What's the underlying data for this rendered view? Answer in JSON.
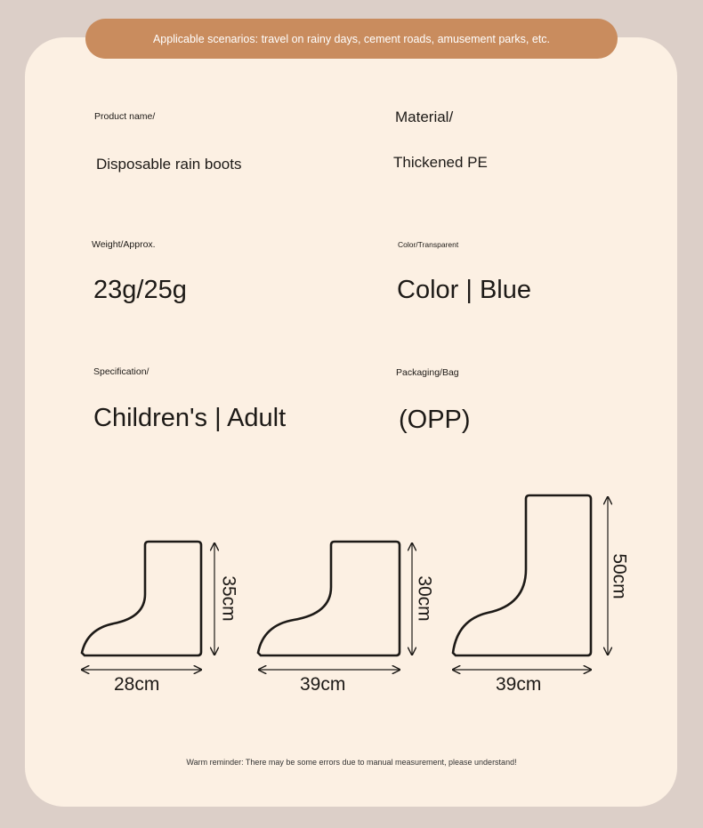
{
  "banner": "Applicable scenarios: travel on rainy days, cement roads, amusement parks, etc.",
  "specs": {
    "product_name_label": "Product name/",
    "product_name": "Disposable rain boots",
    "material_label": "Material/",
    "material": "Thickened PE",
    "weight_label": "Weight/Approx.",
    "weight": "23g/25g",
    "color_label": "Color/Transparent",
    "color": "Color | Blue",
    "spec_label": "Specification/",
    "spec": "Children's | Adult",
    "packaging_label": "Packaging/Bag",
    "packaging": "(OPP)"
  },
  "sizes": [
    {
      "width": "28cm",
      "height": "35cm"
    },
    {
      "width": "39cm",
      "height": "30cm"
    },
    {
      "width": "39cm",
      "height": "50cm"
    }
  ],
  "colors": {
    "banner": "#c98c5e",
    "card": "#fcf0e3",
    "background": "#dccfc8"
  },
  "reminder": "Warm reminder: There may be some errors due to manual measurement, please understand!"
}
